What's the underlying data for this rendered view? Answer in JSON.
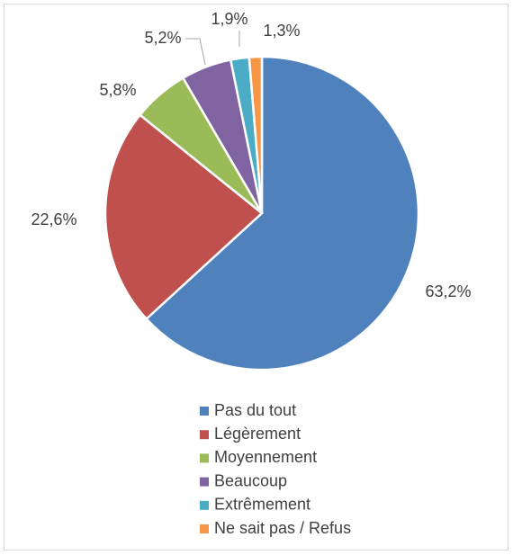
{
  "chart_data": {
    "type": "pie",
    "categories": [
      "Pas du tout",
      "Légèrement",
      "Moyennement",
      "Beaucoup",
      "Extrêmement",
      "Ne sait pas / Refus"
    ],
    "values": [
      63.2,
      22.6,
      5.8,
      5.2,
      1.9,
      1.3
    ],
    "value_labels": [
      "63,2%",
      "22,6%",
      "5,8%",
      "5,2%",
      "1,9%",
      "1,3%"
    ],
    "colors": [
      "#4f81bd",
      "#c0504d",
      "#9bbb59",
      "#8064a2",
      "#4bacc6",
      "#f79646"
    ],
    "legend": "bottom"
  }
}
